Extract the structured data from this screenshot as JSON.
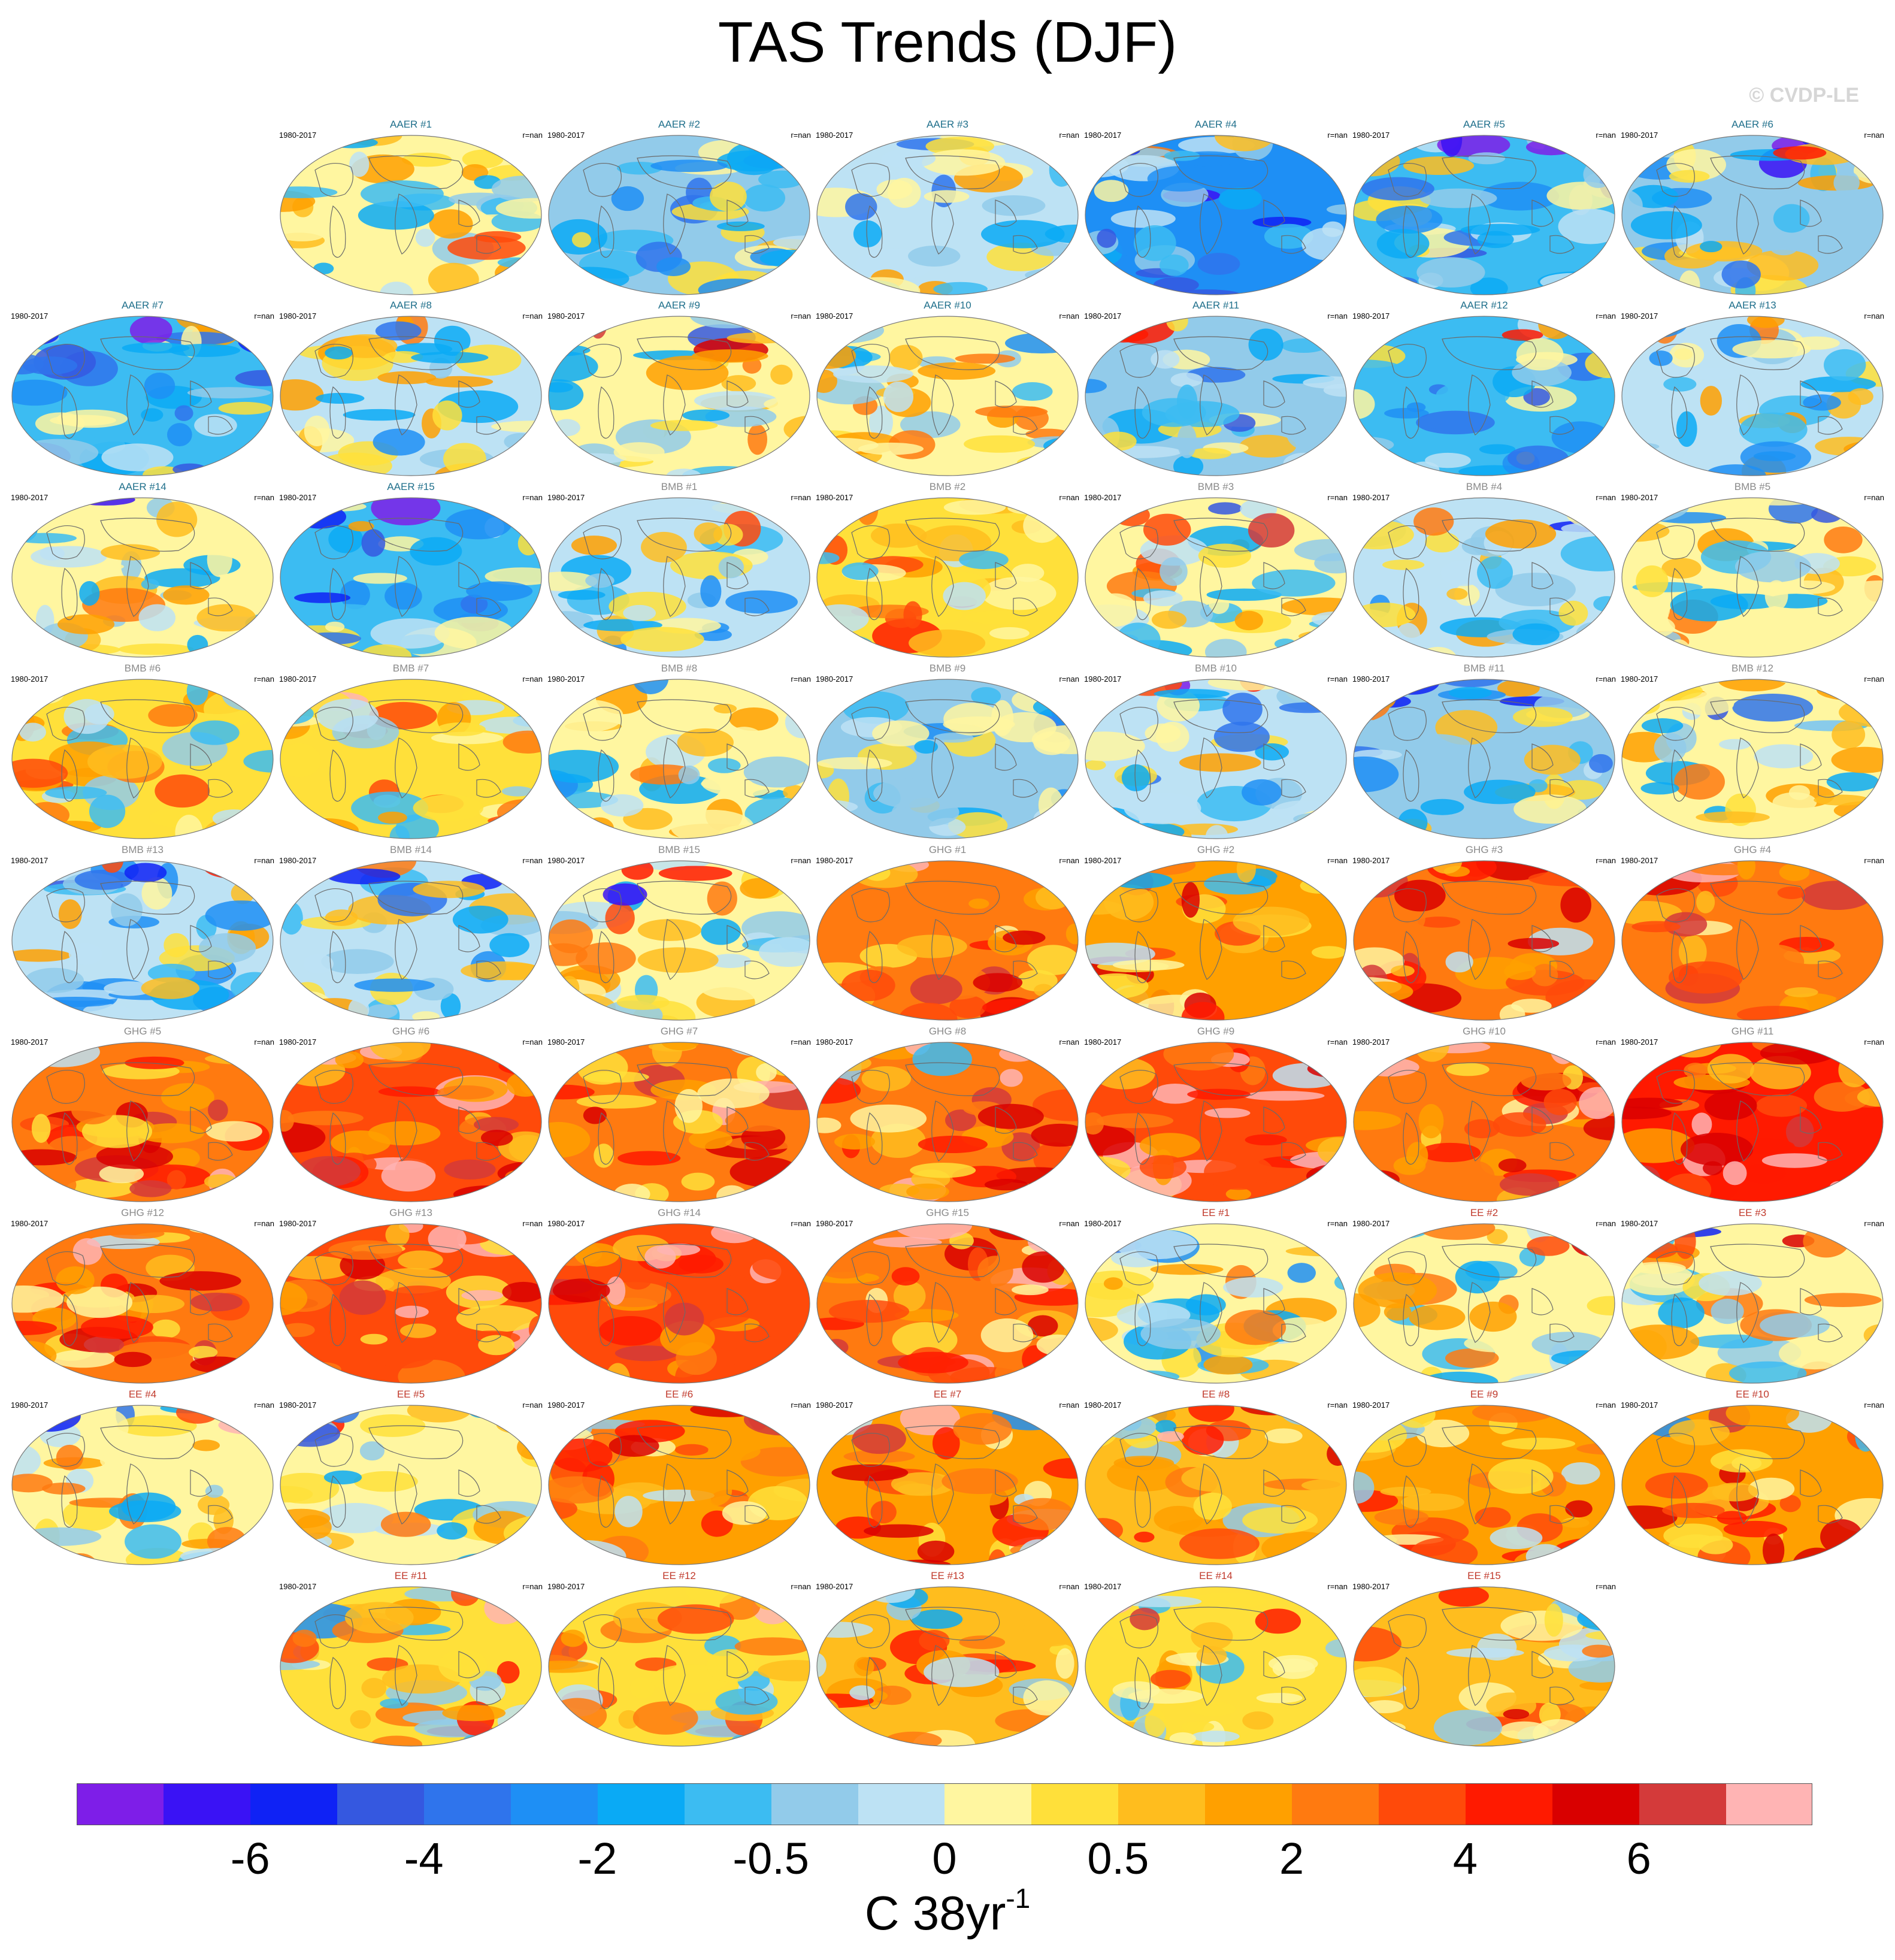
{
  "title": "TAS Trends (DJF)",
  "copyright": "© CVDP-LE",
  "colors": {
    "AAER": "#1f6f8b",
    "BMB": "#8a8a8a",
    "GHG": "#8a8a8a",
    "EE": "#c0392b"
  },
  "panels": [
    {
      "label": "AAER #1",
      "group": "AAER",
      "period": "1980-2017",
      "r": "r=nan",
      "warmth": 0.1
    },
    {
      "label": "AAER #2",
      "group": "AAER",
      "period": "1980-2017",
      "r": "r=nan",
      "warmth": -0.2
    },
    {
      "label": "AAER #3",
      "group": "AAER",
      "period": "1980-2017",
      "r": "r=nan",
      "warmth": -0.1
    },
    {
      "label": "AAER #4",
      "group": "AAER",
      "period": "1980-2017",
      "r": "r=nan",
      "warmth": -0.45
    },
    {
      "label": "AAER #5",
      "group": "AAER",
      "period": "1980-2017",
      "r": "r=nan",
      "warmth": -0.3
    },
    {
      "label": "AAER #6",
      "group": "AAER",
      "period": "1980-2017",
      "r": "r=nan",
      "warmth": -0.15
    },
    {
      "label": "AAER #7",
      "group": "AAER",
      "period": "1980-2017",
      "r": "r=nan",
      "warmth": -0.25
    },
    {
      "label": "AAER #8",
      "group": "AAER",
      "period": "1980-2017",
      "r": "r=nan",
      "warmth": -0.05
    },
    {
      "label": "AAER #9",
      "group": "AAER",
      "period": "1980-2017",
      "r": "r=nan",
      "warmth": 0.05
    },
    {
      "label": "AAER #10",
      "group": "AAER",
      "period": "1980-2017",
      "r": "r=nan",
      "warmth": 0.05
    },
    {
      "label": "AAER #11",
      "group": "AAER",
      "period": "1980-2017",
      "r": "r=nan",
      "warmth": -0.2
    },
    {
      "label": "AAER #12",
      "group": "AAER",
      "period": "1980-2017",
      "r": "r=nan",
      "warmth": -0.25
    },
    {
      "label": "AAER #13",
      "group": "AAER",
      "period": "1980-2017",
      "r": "r=nan",
      "warmth": -0.05
    },
    {
      "label": "AAER #14",
      "group": "AAER",
      "period": "1980-2017",
      "r": "r=nan",
      "warmth": 0.05
    },
    {
      "label": "AAER #15",
      "group": "AAER",
      "period": "1980-2017",
      "r": "r=nan",
      "warmth": -0.3
    },
    {
      "label": "BMB #1",
      "group": "BMB",
      "period": "1980-2017",
      "r": "r=nan",
      "warmth": -0.05
    },
    {
      "label": "BMB #2",
      "group": "BMB",
      "period": "1980-2017",
      "r": "r=nan",
      "warmth": 0.2
    },
    {
      "label": "BMB #3",
      "group": "BMB",
      "period": "1980-2017",
      "r": "r=nan",
      "warmth": 0.1
    },
    {
      "label": "BMB #4",
      "group": "BMB",
      "period": "1980-2017",
      "r": "r=nan",
      "warmth": -0.05
    },
    {
      "label": "BMB #5",
      "group": "BMB",
      "period": "1980-2017",
      "r": "r=nan",
      "warmth": 0.1
    },
    {
      "label": "BMB #6",
      "group": "BMB",
      "period": "1980-2017",
      "r": "r=nan",
      "warmth": 0.15
    },
    {
      "label": "BMB #7",
      "group": "BMB",
      "period": "1980-2017",
      "r": "r=nan",
      "warmth": 0.15
    },
    {
      "label": "BMB #8",
      "group": "BMB",
      "period": "1980-2017",
      "r": "r=nan",
      "warmth": 0.0
    },
    {
      "label": "BMB #9",
      "group": "BMB",
      "period": "1980-2017",
      "r": "r=nan",
      "warmth": -0.15
    },
    {
      "label": "BMB #10",
      "group": "BMB",
      "period": "1980-2017",
      "r": "r=nan",
      "warmth": -0.1
    },
    {
      "label": "BMB #11",
      "group": "BMB",
      "period": "1980-2017",
      "r": "r=nan",
      "warmth": -0.15
    },
    {
      "label": "BMB #12",
      "group": "BMB",
      "period": "1980-2017",
      "r": "r=nan",
      "warmth": 0.05
    },
    {
      "label": "BMB #13",
      "group": "BMB",
      "period": "1980-2017",
      "r": "r=nan",
      "warmth": -0.05
    },
    {
      "label": "BMB #14",
      "group": "BMB",
      "period": "1980-2017",
      "r": "r=nan",
      "warmth": -0.1
    },
    {
      "label": "BMB #15",
      "group": "BMB",
      "period": "1980-2017",
      "r": "r=nan",
      "warmth": 0.1
    },
    {
      "label": "GHG #1",
      "group": "GHG",
      "period": "1980-2017",
      "r": "r=nan",
      "warmth": 0.55
    },
    {
      "label": "GHG #2",
      "group": "GHG",
      "period": "1980-2017",
      "r": "r=nan",
      "warmth": 0.4
    },
    {
      "label": "GHG #3",
      "group": "GHG",
      "period": "1980-2017",
      "r": "r=nan",
      "warmth": 0.45
    },
    {
      "label": "GHG #4",
      "group": "GHG",
      "period": "1980-2017",
      "r": "r=nan",
      "warmth": 0.5
    },
    {
      "label": "GHG #5",
      "group": "GHG",
      "period": "1980-2017",
      "r": "r=nan",
      "warmth": 0.55
    },
    {
      "label": "GHG #6",
      "group": "GHG",
      "period": "1980-2017",
      "r": "r=nan",
      "warmth": 0.65
    },
    {
      "label": "GHG #7",
      "group": "GHG",
      "period": "1980-2017",
      "r": "r=nan",
      "warmth": 0.55
    },
    {
      "label": "GHG #8",
      "group": "GHG",
      "period": "1980-2017",
      "r": "r=nan",
      "warmth": 0.55
    },
    {
      "label": "GHG #9",
      "group": "GHG",
      "period": "1980-2017",
      "r": "r=nan",
      "warmth": 0.65
    },
    {
      "label": "GHG #10",
      "group": "GHG",
      "period": "1980-2017",
      "r": "r=nan",
      "warmth": 0.55
    },
    {
      "label": "GHG #11",
      "group": "GHG",
      "period": "1980-2017",
      "r": "r=nan",
      "warmth": 0.7
    },
    {
      "label": "GHG #12",
      "group": "GHG",
      "period": "1980-2017",
      "r": "r=nan",
      "warmth": 0.5
    },
    {
      "label": "GHG #13",
      "group": "GHG",
      "period": "1980-2017",
      "r": "r=nan",
      "warmth": 0.6
    },
    {
      "label": "GHG #14",
      "group": "GHG",
      "period": "1980-2017",
      "r": "r=nan",
      "warmth": 0.65
    },
    {
      "label": "GHG #15",
      "group": "GHG",
      "period": "1980-2017",
      "r": "r=nan",
      "warmth": 0.55
    },
    {
      "label": "EE #1",
      "group": "EE",
      "period": "1980-2017",
      "r": "r=nan",
      "warmth": 0.0
    },
    {
      "label": "EE #2",
      "group": "EE",
      "period": "1980-2017",
      "r": "r=nan",
      "warmth": 0.1
    },
    {
      "label": "EE #3",
      "group": "EE",
      "period": "1980-2017",
      "r": "r=nan",
      "warmth": 0.05
    },
    {
      "label": "EE #4",
      "group": "EE",
      "period": "1980-2017",
      "r": "r=nan",
      "warmth": 0.1
    },
    {
      "label": "EE #5",
      "group": "EE",
      "period": "1980-2017",
      "r": "r=nan",
      "warmth": 0.05
    },
    {
      "label": "EE #6",
      "group": "EE",
      "period": "1980-2017",
      "r": "r=nan",
      "warmth": 0.35
    },
    {
      "label": "EE #7",
      "group": "EE",
      "period": "1980-2017",
      "r": "r=nan",
      "warmth": 0.35
    },
    {
      "label": "EE #8",
      "group": "EE",
      "period": "1980-2017",
      "r": "r=nan",
      "warmth": 0.3
    },
    {
      "label": "EE #9",
      "group": "EE",
      "period": "1980-2017",
      "r": "r=nan",
      "warmth": 0.35
    },
    {
      "label": "EE #10",
      "group": "EE",
      "period": "1980-2017",
      "r": "r=nan",
      "warmth": 0.4
    },
    {
      "label": "EE #11",
      "group": "EE",
      "period": "1980-2017",
      "r": "r=nan",
      "warmth": 0.2
    },
    {
      "label": "EE #12",
      "group": "EE",
      "period": "1980-2017",
      "r": "r=nan",
      "warmth": 0.15
    },
    {
      "label": "EE #13",
      "group": "EE",
      "period": "1980-2017",
      "r": "r=nan",
      "warmth": 0.3
    },
    {
      "label": "EE #14",
      "group": "EE",
      "period": "1980-2017",
      "r": "r=nan",
      "warmth": 0.15
    },
    {
      "label": "EE #15",
      "group": "EE",
      "period": "1980-2017",
      "r": "r=nan",
      "warmth": 0.3
    }
  ],
  "colorbar": {
    "colors": [
      "#7e1ee8",
      "#3a12f5",
      "#0f22f5",
      "#3558e0",
      "#2f74ec",
      "#1e8ff5",
      "#0aaaf5",
      "#3cbcf2",
      "#92cbea",
      "#bde2f4",
      "#fff6a0",
      "#ffe03a",
      "#ffbd1e",
      "#ffa000",
      "#ff7a10",
      "#ff4a0a",
      "#ff1a00",
      "#d90000",
      "#d43a3a",
      "#ffb4b4"
    ],
    "labels": [
      {
        "text": "-6",
        "boundary": 2
      },
      {
        "text": "-4",
        "boundary": 4
      },
      {
        "text": "-2",
        "boundary": 6
      },
      {
        "text": "-0.5",
        "boundary": 8
      },
      {
        "text": "0",
        "boundary": 10
      },
      {
        "text": "0.5",
        "boundary": 12
      },
      {
        "text": "2",
        "boundary": 14
      },
      {
        "text": "4",
        "boundary": 16
      },
      {
        "text": "6",
        "boundary": 18
      }
    ],
    "units": "C 38yr",
    "units_exp": "-1"
  }
}
